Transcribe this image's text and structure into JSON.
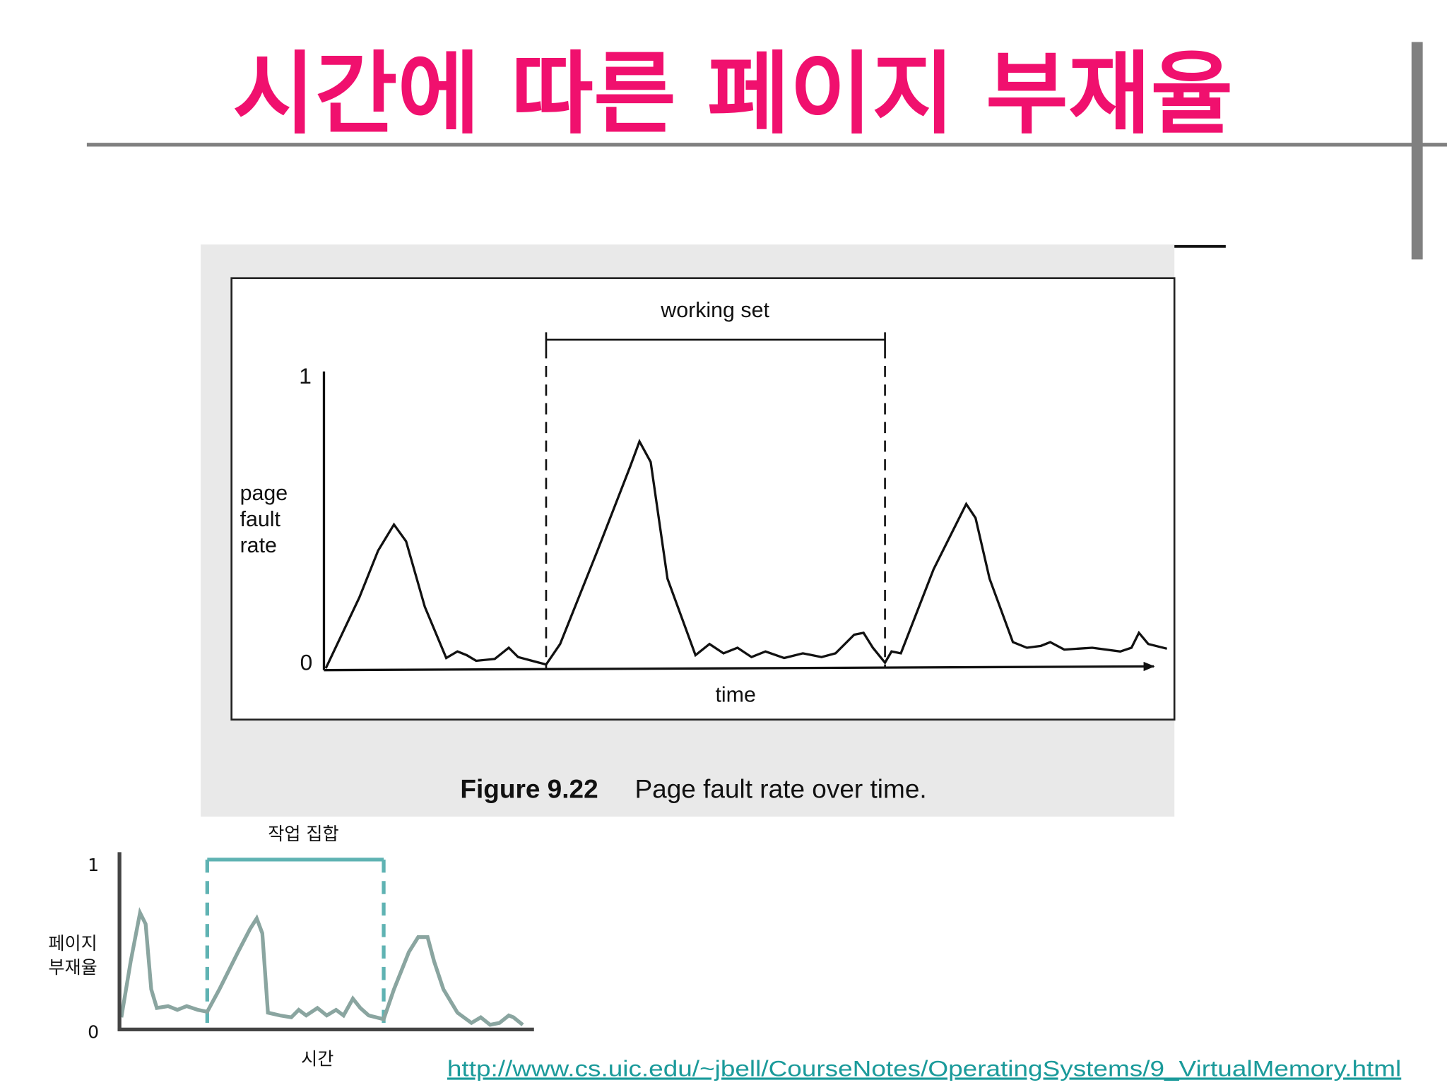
{
  "title": "시간에 따른 페이지 부재율",
  "figure": {
    "bracket_label": "working set",
    "y_max": "1",
    "y_min": "0",
    "y_label": [
      "page",
      "fault",
      "rate"
    ],
    "x_label": "time",
    "caption_number": "Figure 9.22",
    "caption_text": "Page fault rate over time."
  },
  "translation": {
    "bracket_label": "작업 집합",
    "y_max": "1",
    "y_min": "0",
    "y_label": [
      "페이지",
      "부재율"
    ],
    "x_label": "시간"
  },
  "source_url": "http://www.cs.uic.edu/~jbell/CourseNotes/OperatingSystems/9_VirtualMemory.html"
}
